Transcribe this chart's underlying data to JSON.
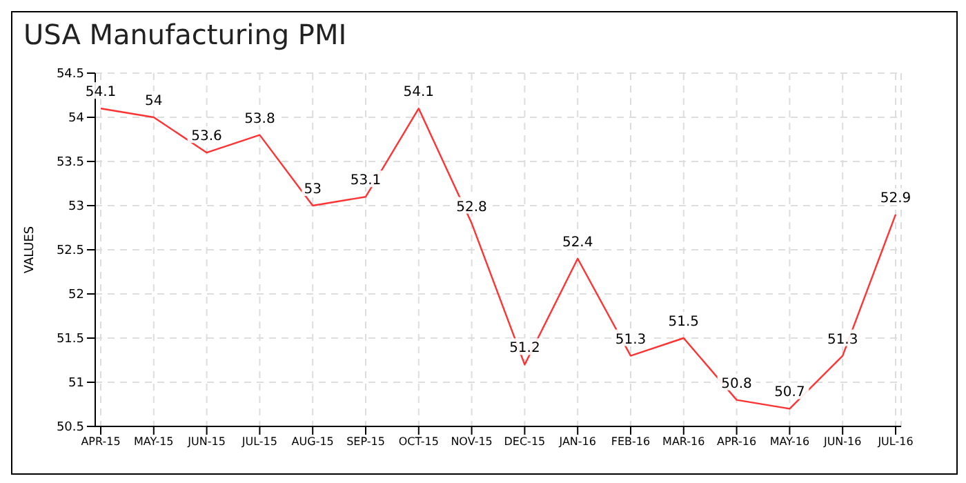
{
  "chart_data": {
    "type": "line",
    "title": "USA Manufacturing PMI",
    "ylabel": "VALUES",
    "categories": [
      "APR-15",
      "MAY-15",
      "JUN-15",
      "JUL-15",
      "AUG-15",
      "SEP-15",
      "OCT-15",
      "NOV-15",
      "DEC-15",
      "JAN-16",
      "FEB-16",
      "MAR-16",
      "APR-16",
      "MAY-16",
      "JUN-16",
      "JUL-16"
    ],
    "series": [
      {
        "color": "#ff3333",
        "values": [
          54.1,
          54,
          53.6,
          53.8,
          53,
          53.1,
          54.1,
          52.8,
          51.2,
          52.4,
          51.3,
          51.5,
          50.8,
          50.7,
          51.3,
          52.9
        ]
      }
    ],
    "ylim": [
      50.5,
      54.5
    ],
    "yticks": [
      50.5,
      51,
      51.5,
      52,
      52.5,
      53,
      53.5,
      54,
      54.5
    ],
    "grid": true,
    "data_labels": true,
    "marker": "none",
    "line_style": "solid",
    "legend": false
  }
}
